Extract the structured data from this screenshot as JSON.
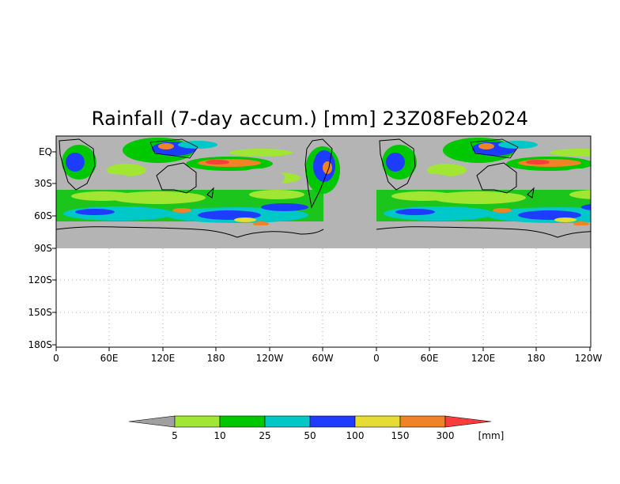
{
  "title": "Rainfall (7-day accum.) [mm] 23Z08Feb2024",
  "y_axis_labels": [
    "EQ",
    "30S",
    "60S",
    "90S",
    "120S",
    "150S",
    "180S"
  ],
  "x_axis_labels": [
    "0",
    "60E",
    "120E",
    "180",
    "120W",
    "60W",
    "0",
    "60E",
    "120E",
    "180",
    "120W"
  ],
  "colorbar": {
    "labels": [
      "5",
      "10",
      "25",
      "50",
      "100",
      "150",
      "300"
    ],
    "unit": "[mm]",
    "colors": [
      "#a0a0a0",
      "#a0e632",
      "#00c800",
      "#00c8c8",
      "#1e3cff",
      "#e6dc32",
      "#f08228",
      "#fa3c3c"
    ]
  },
  "colors": {
    "no_rain": "#b4b4b4",
    "frame": "#000000",
    "grid": "#9a9a9a"
  }
}
